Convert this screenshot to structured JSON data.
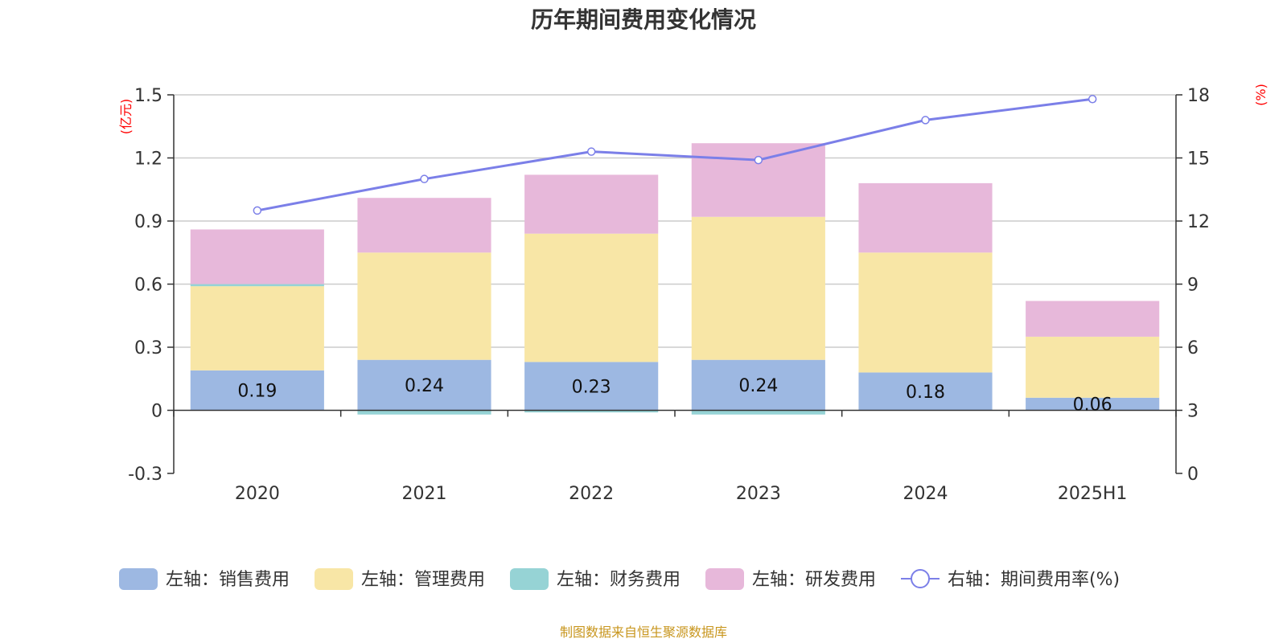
{
  "chart_data": {
    "type": "bar",
    "title": "历年期间费用变化情况",
    "categories": [
      "2020",
      "2021",
      "2022",
      "2023",
      "2024",
      "2025H1"
    ],
    "left_axis": {
      "unit": "(亿元)",
      "ylim": [
        -0.3,
        1.5
      ],
      "ticks": [
        "1.5",
        "1.2",
        "0.9",
        "0.6",
        "0.3",
        "0",
        "-0.3"
      ],
      "tick_values": [
        1.5,
        1.2,
        0.9,
        0.6,
        0.3,
        0,
        -0.3
      ]
    },
    "right_axis": {
      "unit": "(%)",
      "ylim": [
        0,
        18
      ],
      "ticks": [
        "18",
        "15",
        "12",
        "9",
        "6",
        "3",
        "0"
      ],
      "tick_values": [
        18,
        15,
        12,
        9,
        6,
        3,
        0
      ]
    },
    "series": [
      {
        "name": "左轴：销售费用",
        "type": "bar",
        "axis": "left",
        "color": "#9db8e2",
        "values": [
          0.19,
          0.24,
          0.23,
          0.24,
          0.18,
          0.06
        ],
        "labels": [
          "0.19",
          "0.24",
          "0.23",
          "0.24",
          "0.18",
          "0.06"
        ]
      },
      {
        "name": "左轴：管理费用",
        "type": "bar",
        "axis": "left",
        "color": "#f8e6a6",
        "values": [
          0.4,
          0.51,
          0.61,
          0.68,
          0.57,
          0.29
        ]
      },
      {
        "name": "左轴：财务费用",
        "type": "bar",
        "axis": "left",
        "color": "#96d3d5",
        "values": [
          0.01,
          -0.02,
          -0.01,
          -0.02,
          0.0,
          0.0
        ]
      },
      {
        "name": "左轴：研发费用",
        "type": "bar",
        "axis": "left",
        "color": "#e7b8da",
        "values": [
          0.26,
          0.26,
          0.28,
          0.35,
          0.33,
          0.17
        ]
      },
      {
        "name": "右轴：期间费用率(%)",
        "type": "line",
        "axis": "right",
        "color": "#7b7fe8",
        "values": [
          12.5,
          14.0,
          15.3,
          14.9,
          16.8,
          17.8
        ]
      }
    ],
    "grid": true,
    "legend_position": "bottom"
  },
  "source_note": "制图数据来自恒生聚源数据库"
}
